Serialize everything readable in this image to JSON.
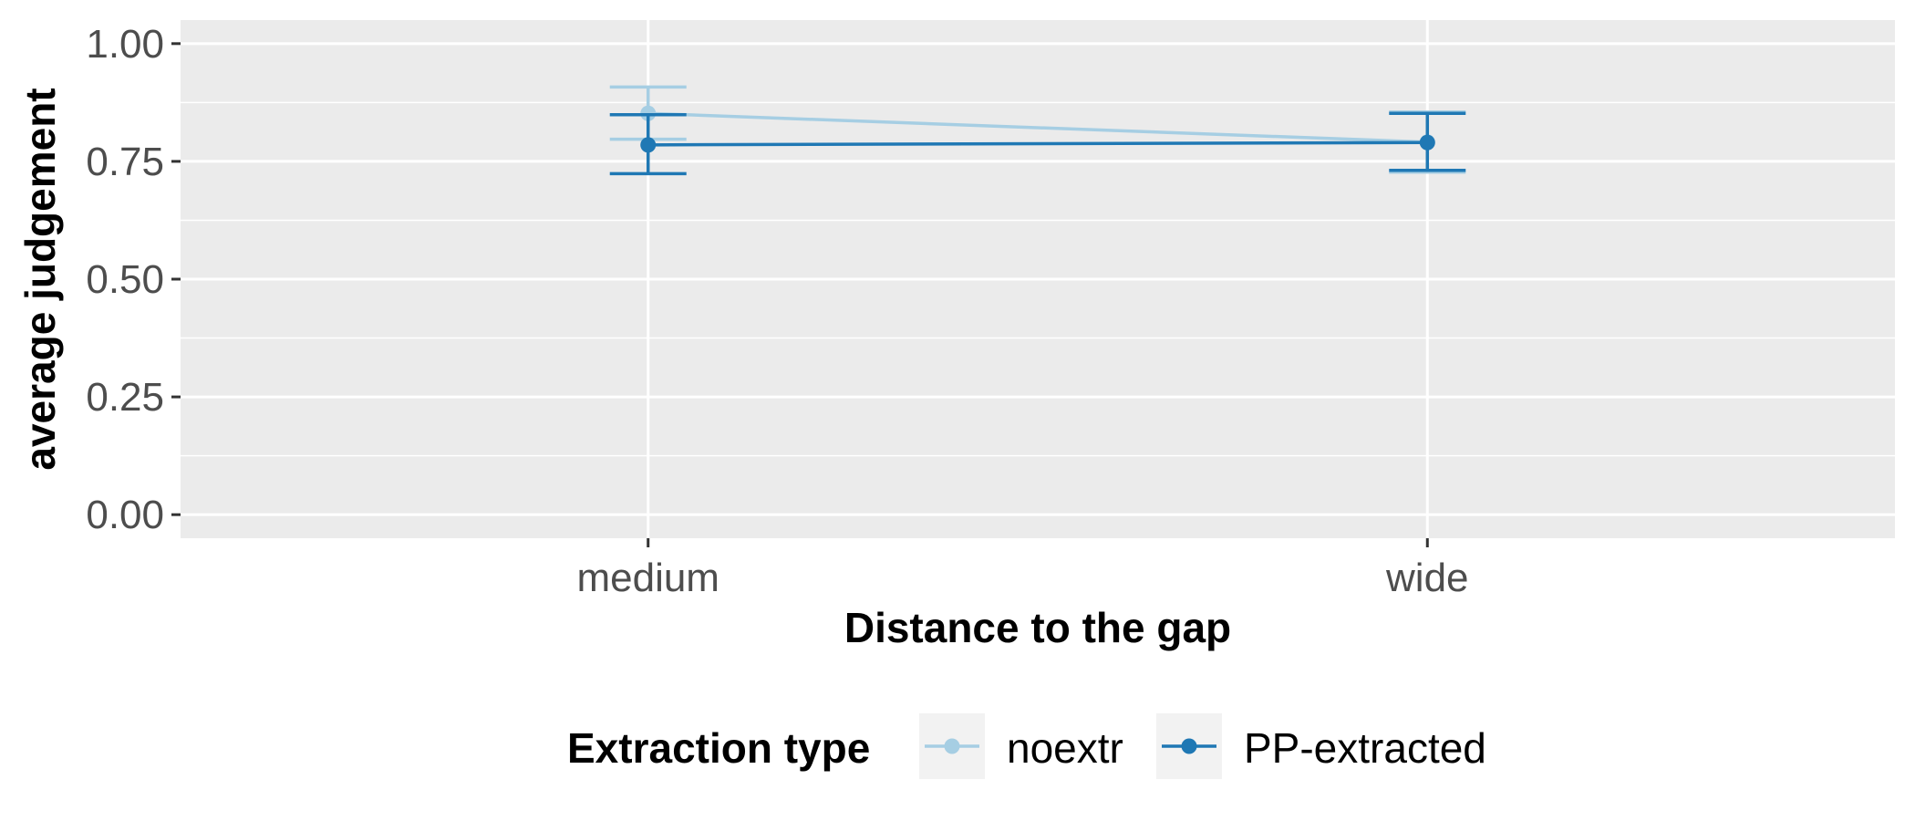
{
  "chart_data": {
    "type": "line",
    "title": "",
    "xlabel": "Distance to the gap",
    "ylabel": "average judgement",
    "categories": [
      "medium",
      "wide"
    ],
    "ylim": [
      -0.05,
      1.05
    ],
    "yticks": [
      0.0,
      0.25,
      0.5,
      0.75,
      1.0
    ],
    "ytick_labels": [
      "0.00",
      "0.25",
      "0.50",
      "0.75",
      "1.00"
    ],
    "grid": true,
    "legend": {
      "title": "Extraction type",
      "placement": "bottom"
    },
    "series": [
      {
        "name": "noextr",
        "color": "#a6cee3",
        "values": [
          0.852,
          0.791
        ],
        "error_low": [
          0.797,
          0.727
        ],
        "error_high": [
          0.908,
          0.855
        ]
      },
      {
        "name": "PP-extracted",
        "color": "#1f78b4",
        "values": [
          0.785,
          0.79
        ],
        "error_low": [
          0.724,
          0.731
        ],
        "error_high": [
          0.849,
          0.852
        ]
      }
    ]
  }
}
